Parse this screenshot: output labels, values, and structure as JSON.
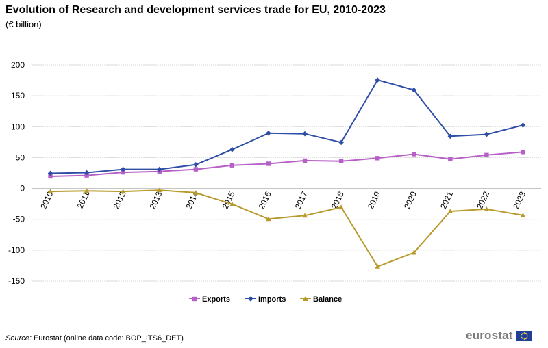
{
  "header": {
    "title": "Evolution of Research and development services trade for EU, 2010-2023",
    "subtitle": "(€ billion)"
  },
  "chart_data": {
    "type": "line",
    "title": "Evolution of Research and development services trade for EU, 2010-2023",
    "subtitle": "(€ billion)",
    "xlabel": "",
    "ylabel": "",
    "ylim": [
      -150,
      200
    ],
    "yticks": [
      -150,
      -100,
      -50,
      0,
      50,
      100,
      150,
      200
    ],
    "grid": true,
    "legend_position": "bottom-center",
    "categories": [
      "2010",
      "2011",
      "2012",
      "2013",
      "2014",
      "2015",
      "2016",
      "2017",
      "2018",
      "2019",
      "2020",
      "2021",
      "2022",
      "2023"
    ],
    "series": [
      {
        "name": "Exports",
        "color": "#b65fc6",
        "marker": "square",
        "values": [
          19.5,
          21,
          26,
          27.5,
          31,
          37.5,
          40,
          45,
          44,
          49,
          55.5,
          47.5,
          54,
          59
        ]
      },
      {
        "name": "Imports",
        "color": "#2e4da7",
        "marker": "diamond",
        "values": [
          24.5,
          25.5,
          31,
          31,
          38.5,
          63,
          89.5,
          88.5,
          74.5,
          175.5,
          159.5,
          84.5,
          87.5,
          102.5
        ]
      },
      {
        "name": "Balance",
        "color": "#b69a2b",
        "marker": "triangle",
        "values": [
          -5,
          -4,
          -5,
          -3,
          -7,
          -25.5,
          -49.5,
          -44,
          -30.5,
          -126.5,
          -104,
          -37,
          -33.5,
          -43.5
        ]
      }
    ]
  },
  "footer": {
    "source_label": "Source:",
    "source_text": " Eurostat (online data code: BOP_ITS6_DET)",
    "logo_text": "eurostat"
  }
}
